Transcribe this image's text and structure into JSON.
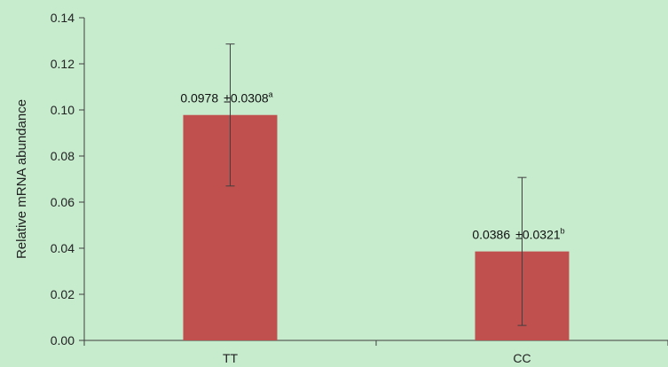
{
  "chart_data": {
    "type": "bar",
    "title": "",
    "xlabel": "",
    "ylabel": "Relative mRNA abundance",
    "categories": [
      "TT",
      "CC"
    ],
    "values": [
      0.0978,
      0.0386
    ],
    "errors": [
      0.0308,
      0.0321
    ],
    "data_labels": [
      {
        "value": "0.0978",
        "pm": "±",
        "error": "0.0308",
        "sup": "a"
      },
      {
        "value": "0.0386",
        "pm": "±",
        "error": "0.0321",
        "sup": "b"
      }
    ],
    "ylim": [
      0,
      0.14
    ],
    "yticks": [
      "0.00",
      "0.02",
      "0.04",
      "0.06",
      "0.08",
      "0.10",
      "0.12",
      "0.14"
    ],
    "grid": false,
    "legend": "none",
    "colors": {
      "bar": "#c0504d",
      "background": "#c6ebcd",
      "axis": "#404040",
      "errorbar": "#404040"
    }
  }
}
